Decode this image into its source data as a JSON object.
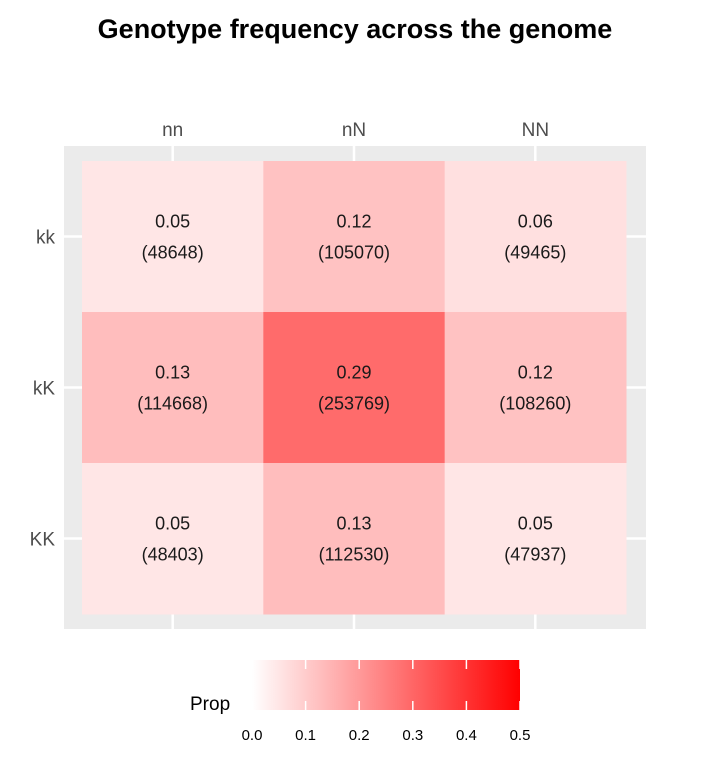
{
  "chart_data": {
    "type": "heatmap",
    "title": "Genotype frequency across the genome",
    "x_categories": [
      "nn",
      "nN",
      "NN"
    ],
    "y_categories": [
      "kk",
      "kK",
      "KK"
    ],
    "cells": [
      {
        "x": "nn",
        "y": "kk",
        "prop": 0.05,
        "prop_label": "0.05",
        "count_label": "(48648)"
      },
      {
        "x": "nN",
        "y": "kk",
        "prop": 0.12,
        "prop_label": "0.12",
        "count_label": "(105070)"
      },
      {
        "x": "NN",
        "y": "kk",
        "prop": 0.06,
        "prop_label": "0.06",
        "count_label": "(49465)"
      },
      {
        "x": "nn",
        "y": "kK",
        "prop": 0.13,
        "prop_label": "0.13",
        "count_label": "(114668)"
      },
      {
        "x": "nN",
        "y": "kK",
        "prop": 0.29,
        "prop_label": "0.29",
        "count_label": "(253769)"
      },
      {
        "x": "NN",
        "y": "kK",
        "prop": 0.12,
        "prop_label": "0.12",
        "count_label": "(108260)"
      },
      {
        "x": "nn",
        "y": "KK",
        "prop": 0.05,
        "prop_label": "0.05",
        "count_label": "(48403)"
      },
      {
        "x": "nN",
        "y": "KK",
        "prop": 0.13,
        "prop_label": "0.13",
        "count_label": "(112530)"
      },
      {
        "x": "NN",
        "y": "KK",
        "prop": 0.05,
        "prop_label": "0.05",
        "count_label": "(47937)"
      }
    ],
    "legend": {
      "title": "Prop",
      "ticks": [
        "0.0",
        "0.1",
        "0.2",
        "0.3",
        "0.4",
        "0.5"
      ],
      "range": [
        0,
        0.5
      ],
      "low_color": "#ffffff",
      "high_color": "#ff0000",
      "placement": "bottom"
    },
    "x_axis_position": "top",
    "panel_background": "#ebebeb",
    "grid": true
  }
}
